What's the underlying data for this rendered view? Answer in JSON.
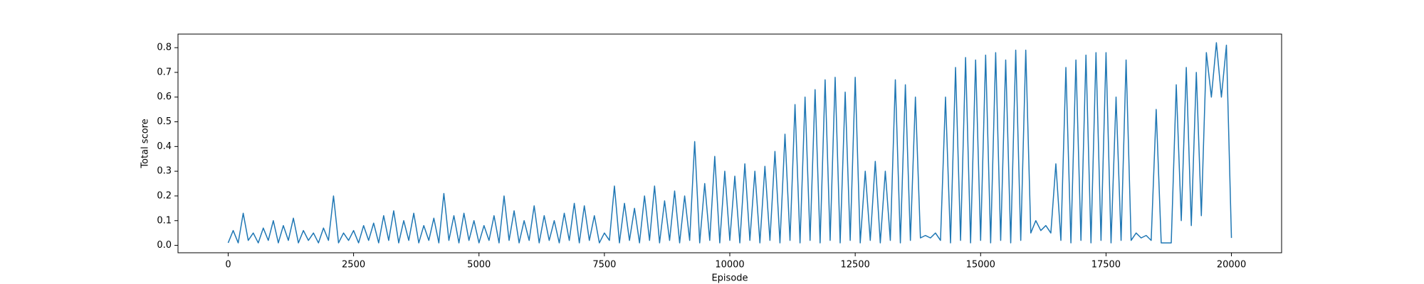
{
  "chart_data": {
    "type": "line",
    "xlabel": "Episode",
    "ylabel": "Total score",
    "color": "#1f77b4",
    "xlim": [
      -1000,
      21000
    ],
    "xticks": [
      0,
      2500,
      5000,
      7500,
      10000,
      12500,
      15000,
      17500,
      20000
    ],
    "ylim": [
      -0.03,
      0.855
    ],
    "yticks": [
      {
        "value": 0,
        "label": "0.0"
      },
      0.1,
      0.2,
      0.3,
      0.4,
      0.5,
      0.6,
      0.7,
      0.8
    ],
    "x": [
      0,
      100,
      200,
      300,
      400,
      500,
      600,
      700,
      800,
      900,
      1000,
      1100,
      1200,
      1300,
      1400,
      1500,
      1600,
      1700,
      1800,
      1900,
      2000,
      2100,
      2200,
      2300,
      2400,
      2500,
      2600,
      2700,
      2800,
      2900,
      3000,
      3100,
      3200,
      3300,
      3400,
      3500,
      3600,
      3700,
      3800,
      3900,
      4000,
      4100,
      4200,
      4300,
      4400,
      4500,
      4600,
      4700,
      4800,
      4900,
      5000,
      5100,
      5200,
      5300,
      5400,
      5500,
      5600,
      5700,
      5800,
      5900,
      6000,
      6100,
      6200,
      6300,
      6400,
      6500,
      6600,
      6700,
      6800,
      6900,
      7000,
      7100,
      7200,
      7300,
      7400,
      7500,
      7600,
      7700,
      7800,
      7900,
      8000,
      8100,
      8200,
      8300,
      8400,
      8500,
      8600,
      8700,
      8800,
      8900,
      9000,
      9100,
      9200,
      9300,
      9400,
      9500,
      9600,
      9700,
      9800,
      9900,
      10000,
      10100,
      10200,
      10300,
      10400,
      10500,
      10600,
      10700,
      10800,
      10900,
      11000,
      11100,
      11200,
      11300,
      11400,
      11500,
      11600,
      11700,
      11800,
      11900,
      12000,
      12100,
      12200,
      12300,
      12400,
      12500,
      12600,
      12700,
      12800,
      12900,
      13000,
      13100,
      13200,
      13300,
      13400,
      13500,
      13600,
      13700,
      13800,
      13900,
      14000,
      14100,
      14200,
      14300,
      14400,
      14500,
      14600,
      14700,
      14800,
      14900,
      15000,
      15100,
      15200,
      15300,
      15400,
      15500,
      15600,
      15700,
      15800,
      15900,
      16000,
      16100,
      16200,
      16300,
      16400,
      16500,
      16600,
      16700,
      16800,
      16900,
      17000,
      17100,
      17200,
      17300,
      17400,
      17500,
      17600,
      17700,
      17800,
      17900,
      18000,
      18100,
      18200,
      18300,
      18400,
      18500,
      18600,
      18700,
      18800,
      18900,
      19000,
      19100,
      19200,
      19300,
      19400,
      19500,
      19600,
      19700,
      19800,
      19900,
      20000
    ],
    "values": [
      0.01,
      0.06,
      0.01,
      0.13,
      0.02,
      0.05,
      0.01,
      0.07,
      0.02,
      0.1,
      0.01,
      0.08,
      0.02,
      0.11,
      0.01,
      0.06,
      0.02,
      0.05,
      0.01,
      0.07,
      0.02,
      0.2,
      0.01,
      0.05,
      0.02,
      0.06,
      0.01,
      0.08,
      0.02,
      0.09,
      0.01,
      0.12,
      0.02,
      0.14,
      0.01,
      0.1,
      0.02,
      0.13,
      0.01,
      0.08,
      0.02,
      0.11,
      0.01,
      0.21,
      0.02,
      0.12,
      0.01,
      0.13,
      0.02,
      0.1,
      0.01,
      0.08,
      0.02,
      0.12,
      0.01,
      0.2,
      0.02,
      0.14,
      0.01,
      0.1,
      0.02,
      0.16,
      0.01,
      0.12,
      0.02,
      0.1,
      0.01,
      0.13,
      0.02,
      0.17,
      0.01,
      0.16,
      0.02,
      0.12,
      0.01,
      0.05,
      0.02,
      0.24,
      0.01,
      0.17,
      0.02,
      0.15,
      0.01,
      0.2,
      0.02,
      0.24,
      0.01,
      0.18,
      0.02,
      0.22,
      0.01,
      0.2,
      0.02,
      0.42,
      0.01,
      0.25,
      0.02,
      0.36,
      0.01,
      0.3,
      0.02,
      0.28,
      0.01,
      0.33,
      0.02,
      0.3,
      0.01,
      0.32,
      0.02,
      0.38,
      0.01,
      0.45,
      0.02,
      0.57,
      0.01,
      0.6,
      0.02,
      0.63,
      0.01,
      0.67,
      0.02,
      0.68,
      0.01,
      0.62,
      0.02,
      0.68,
      0.01,
      0.3,
      0.02,
      0.34,
      0.01,
      0.3,
      0.02,
      0.67,
      0.01,
      0.65,
      0.02,
      0.6,
      0.03,
      0.04,
      0.03,
      0.05,
      0.02,
      0.6,
      0.01,
      0.72,
      0.02,
      0.76,
      0.01,
      0.75,
      0.02,
      0.77,
      0.01,
      0.78,
      0.02,
      0.75,
      0.01,
      0.79,
      0.02,
      0.79,
      0.05,
      0.1,
      0.06,
      0.08,
      0.05,
      0.33,
      0.02,
      0.72,
      0.01,
      0.75,
      0.02,
      0.77,
      0.01,
      0.78,
      0.02,
      0.78,
      0.01,
      0.6,
      0.02,
      0.75,
      0.02,
      0.05,
      0.03,
      0.04,
      0.02,
      0.55,
      0.01,
      0.01,
      0.01,
      0.65,
      0.1,
      0.72,
      0.08,
      0.7,
      0.12,
      0.78,
      0.6,
      0.82,
      0.6,
      0.81,
      0.03
    ]
  }
}
